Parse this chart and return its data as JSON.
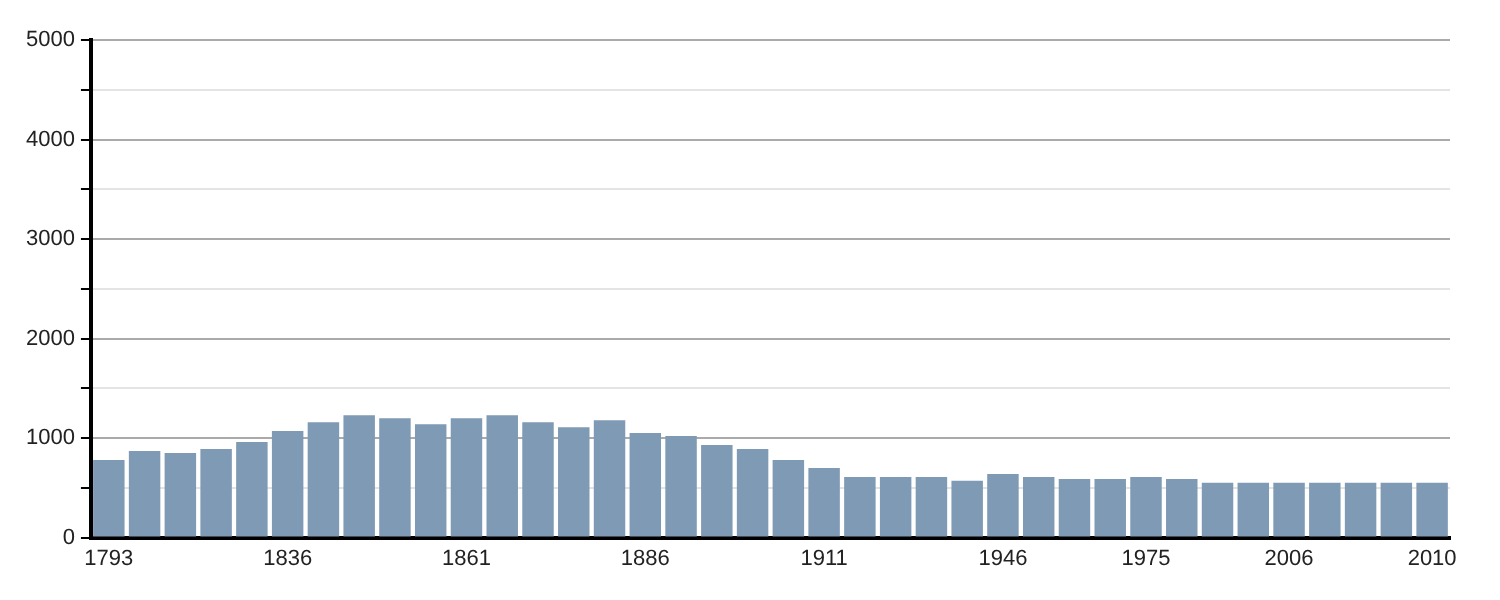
{
  "chart_data": {
    "type": "bar",
    "categories": [
      "1793",
      null,
      null,
      null,
      null,
      "1836",
      null,
      null,
      null,
      null,
      "1861",
      null,
      null,
      null,
      null,
      "1886",
      null,
      null,
      null,
      null,
      "1911",
      null,
      null,
      null,
      null,
      "1946",
      null,
      null,
      null,
      "1975",
      null,
      null,
      null,
      "2006",
      null,
      null,
      null,
      "2010"
    ],
    "values": [
      780,
      870,
      850,
      890,
      960,
      1070,
      1160,
      1230,
      1200,
      1140,
      1200,
      1230,
      1160,
      1110,
      1180,
      1050,
      1020,
      930,
      890,
      780,
      700,
      610,
      610,
      610,
      570,
      640,
      610,
      590,
      590,
      610,
      590,
      550,
      550,
      550,
      550,
      550,
      550,
      550
    ],
    "color": "#7f9ab5",
    "ylim": [
      0,
      5000
    ],
    "yticks": [
      0,
      {
        "value": 500,
        "label": null
      },
      1000,
      {
        "value": 1500,
        "label": null
      },
      2000,
      {
        "value": 2500,
        "label": null
      },
      3000,
      {
        "value": 3500,
        "label": null
      },
      4000,
      {
        "value": 4500,
        "label": null
      },
      5000
    ],
    "grid": "y",
    "legend": false
  }
}
